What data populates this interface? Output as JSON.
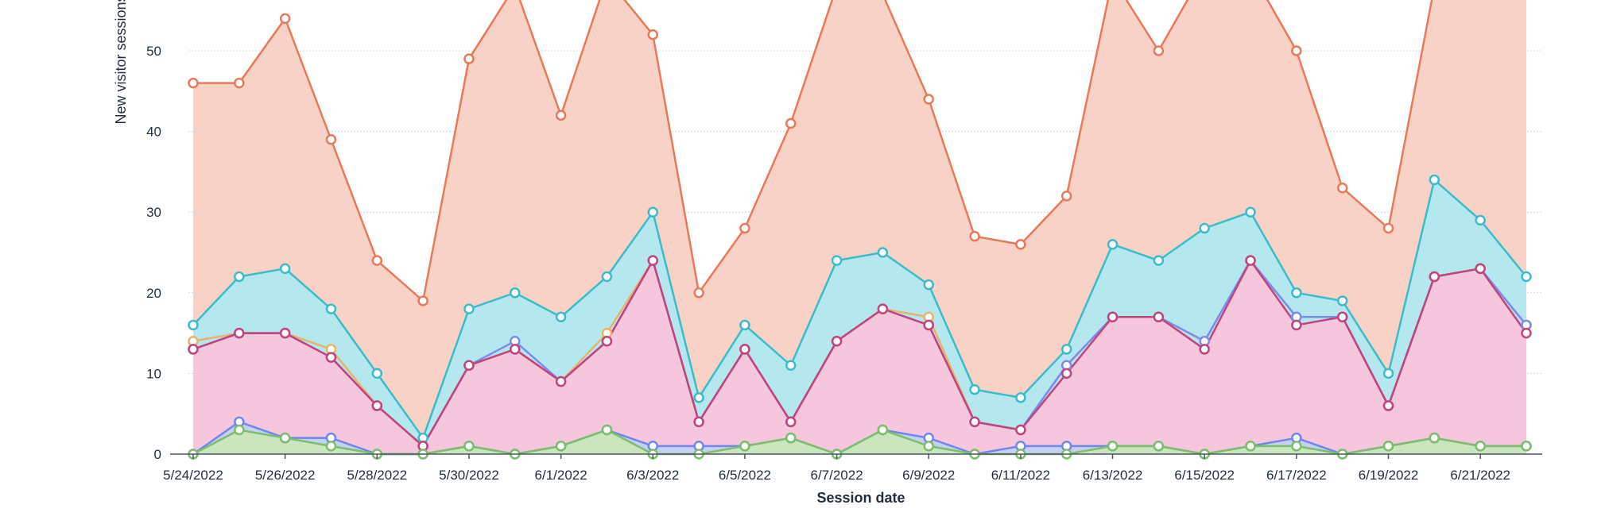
{
  "chart_data": {
    "type": "area",
    "title": "",
    "xlabel": "Session date",
    "ylabel": "New visitor sessions",
    "ylim": [
      0,
      58
    ],
    "yticks": [
      0,
      10,
      20,
      30,
      40,
      50
    ],
    "grid": true,
    "x": [
      "5/24/2022",
      "5/25/2022",
      "5/26/2022",
      "5/27/2022",
      "5/28/2022",
      "5/29/2022",
      "5/30/2022",
      "5/31/2022",
      "6/1/2022",
      "6/2/2022",
      "6/3/2022",
      "6/4/2022",
      "6/5/2022",
      "6/6/2022",
      "6/7/2022",
      "6/8/2022",
      "6/9/2022",
      "6/10/2022",
      "6/11/2022",
      "6/12/2022",
      "6/13/2022",
      "6/14/2022",
      "6/15/2022",
      "6/16/2022",
      "6/17/2022",
      "6/18/2022",
      "6/19/2022",
      "6/20/2022",
      "6/21/2022",
      "6/22/2022"
    ],
    "x_tick_labels": [
      "5/24/2022",
      "5/26/2022",
      "5/28/2022",
      "5/30/2022",
      "6/1/2022",
      "6/3/2022",
      "6/5/2022",
      "6/7/2022",
      "6/9/2022",
      "6/11/2022",
      "6/13/2022",
      "6/15/2022",
      "6/17/2022",
      "6/19/2022",
      "6/21/2022"
    ],
    "series": [
      {
        "color": "#e8795a",
        "fill": "#f9d2c7",
        "values": [
          46,
          46,
          54,
          39,
          24,
          19,
          49,
          58,
          42,
          59,
          52,
          20,
          28,
          41,
          58,
          57,
          44,
          27,
          26,
          32,
          59,
          50,
          60,
          60,
          50,
          33,
          28,
          58,
          60,
          60
        ]
      },
      {
        "color": "#3bbcc9",
        "fill": "#b5e7ee",
        "values": [
          16,
          22,
          23,
          18,
          10,
          2,
          18,
          20,
          17,
          22,
          30,
          7,
          16,
          11,
          24,
          25,
          21,
          8,
          7,
          13,
          26,
          24,
          28,
          30,
          20,
          19,
          10,
          34,
          29,
          22
        ]
      },
      {
        "color": "#e8b36a",
        "fill": "none",
        "values": [
          14,
          15,
          15,
          13,
          6,
          1,
          11,
          13,
          9,
          15,
          24,
          4,
          13,
          4,
          14,
          18,
          17,
          4,
          3,
          11,
          17,
          17,
          14,
          24,
          17,
          17,
          6,
          22,
          23,
          16
        ]
      },
      {
        "color": "#7b8cf0",
        "fill": "none",
        "values": [
          13,
          15,
          15,
          12,
          6,
          1,
          11,
          14,
          9,
          14,
          24,
          4,
          13,
          4,
          14,
          18,
          16,
          4,
          3,
          11,
          17,
          17,
          14,
          24,
          17,
          17,
          6,
          22,
          23,
          16
        ]
      },
      {
        "color": "#c2447c",
        "fill": "#f5c6dc",
        "values": [
          13,
          15,
          15,
          12,
          6,
          1,
          11,
          13,
          9,
          14,
          24,
          4,
          13,
          4,
          14,
          18,
          16,
          4,
          3,
          10,
          17,
          17,
          13,
          24,
          16,
          17,
          6,
          22,
          23,
          15
        ]
      },
      {
        "color": "#6f86ee",
        "fill": "#c6cff5",
        "values": [
          0,
          4,
          2,
          2,
          0,
          0,
          1,
          0,
          1,
          3,
          1,
          1,
          1,
          2,
          0,
          3,
          2,
          0,
          1,
          1,
          1,
          1,
          0,
          1,
          2,
          0,
          1,
          2,
          1,
          1
        ]
      },
      {
        "color": "#7cbf6a",
        "fill": "#cbe5bf",
        "values": [
          0,
          3,
          2,
          1,
          0,
          0,
          1,
          0,
          1,
          3,
          0,
          0,
          1,
          2,
          0,
          3,
          1,
          0,
          0,
          0,
          1,
          1,
          0,
          1,
          1,
          0,
          1,
          2,
          1,
          1
        ]
      }
    ]
  }
}
